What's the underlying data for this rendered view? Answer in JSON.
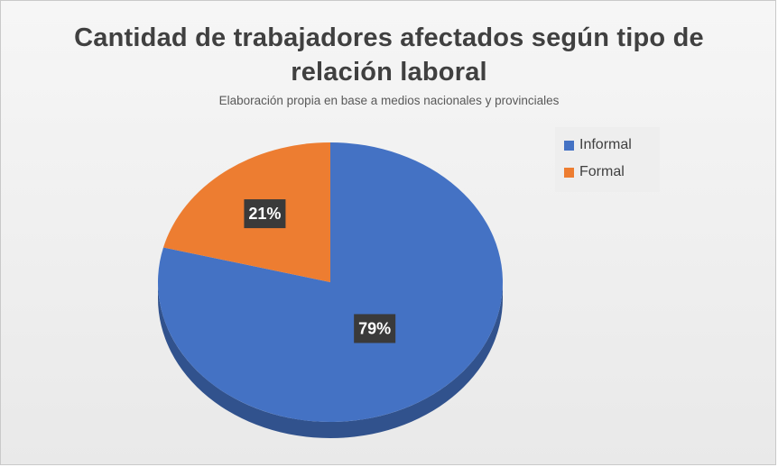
{
  "chart_data": {
    "type": "pie",
    "title": "Cantidad de trabajadores afectados según tipo de relación laboral",
    "subtitle": "Elaboración propia en base a medios nacionales y provinciales",
    "categories": [
      "Informal",
      "Formal"
    ],
    "values": [
      79,
      21
    ],
    "data_labels": [
      "79%",
      "21%"
    ],
    "colors": [
      "#4472C4",
      "#ED7D31"
    ],
    "legend_position": "top-right",
    "style": "3d"
  }
}
